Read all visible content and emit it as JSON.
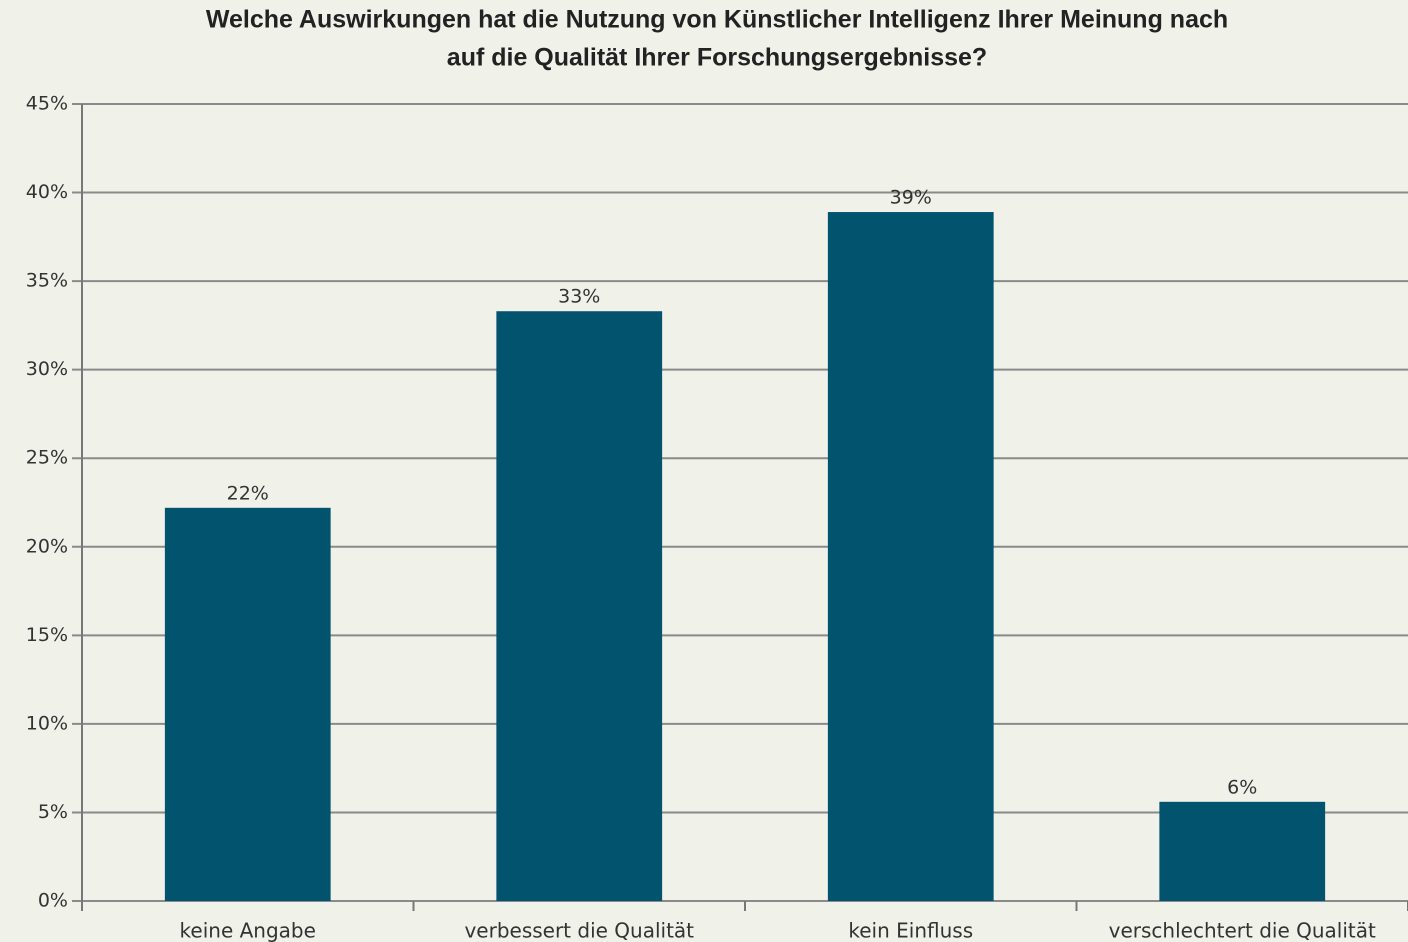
{
  "chart_data": {
    "type": "bar",
    "title": [
      "Welche Auswirkungen hat die Nutzung von Künstlicher Intelligenz Ihrer Meinung nach",
      "auf die Qualität Ihrer Forschungsergebnisse?"
    ],
    "categories": [
      "keine Angabe",
      "verbessert die Qualität",
      "kein Einfluss",
      "verschlechtert die Qualität"
    ],
    "values": [
      22.2,
      33.3,
      38.9,
      5.6
    ],
    "value_labels": [
      "22%",
      "33%",
      "39%",
      "6%"
    ],
    "color": "#02536e",
    "ylim": [
      0,
      45
    ],
    "yticks": [
      {
        "value": 0,
        "label": "0%"
      },
      {
        "value": 5,
        "label": "5%"
      },
      {
        "value": 10,
        "label": "10%"
      },
      {
        "value": 15,
        "label": "15%"
      },
      {
        "value": 20,
        "label": "20%"
      },
      {
        "value": 25,
        "label": "25%"
      },
      {
        "value": 30,
        "label": "30%"
      },
      {
        "value": 35,
        "label": "35%"
      },
      {
        "value": 40,
        "label": "40%"
      },
      {
        "value": 45,
        "label": "45%"
      }
    ],
    "grid": true
  }
}
